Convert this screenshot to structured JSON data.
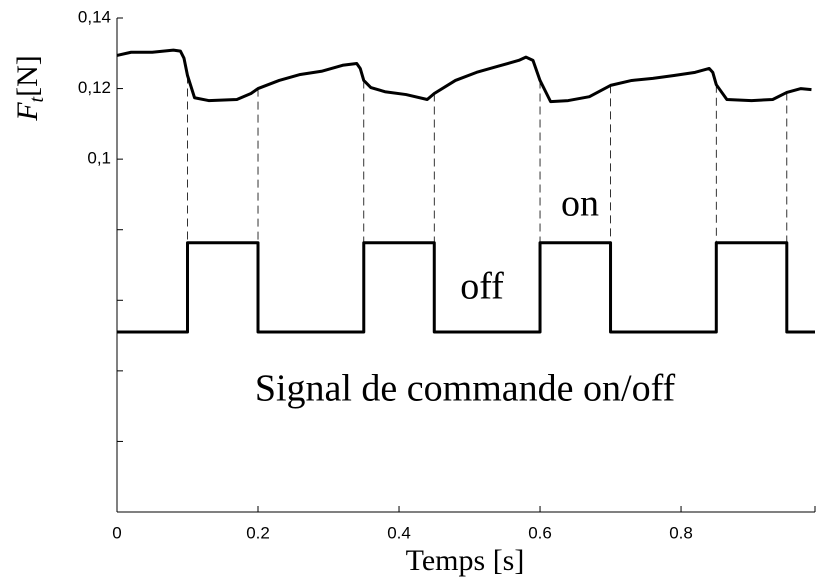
{
  "chart_data": {
    "type": "line",
    "ylabel": "F",
    "ylabel_sub": "t",
    "ylabel_unit": "[N]",
    "xlabel": "Temps [s]",
    "annotations": [
      "on",
      "off",
      "Signal de commande on/off"
    ],
    "xlim": [
      0,
      0.99
    ],
    "ylim": [
      0,
      0.14
    ],
    "xticks": [
      0,
      0.2,
      0.4,
      0.6,
      0.8
    ],
    "yticks": [
      {
        "value": 0.1,
        "label": "0,1"
      },
      {
        "value": 0.12,
        "label": "0,12"
      },
      {
        "value": 0.14,
        "label": "0,14"
      }
    ],
    "yticks_minor": [
      0.02,
      0.04,
      0.06,
      0.08
    ],
    "series": [
      {
        "color": "#000000",
        "x": [
          0,
          0.02,
          0.05,
          0.08,
          0.09,
          0.095,
          0.1,
          0.11,
          0.13,
          0.17,
          0.19,
          0.2,
          0.23,
          0.26,
          0.29,
          0.32,
          0.34,
          0.345,
          0.35,
          0.36,
          0.38,
          0.41,
          0.44,
          0.45,
          0.48,
          0.51,
          0.54,
          0.57,
          0.58,
          0.59,
          0.6,
          0.615,
          0.64,
          0.67,
          0.7,
          0.73,
          0.76,
          0.79,
          0.82,
          0.84,
          0.845,
          0.85,
          0.865,
          0.9,
          0.93,
          0.95,
          0.97,
          0.985
        ],
        "values": [
          0.1294,
          0.1303,
          0.1303,
          0.1309,
          0.1306,
          0.1286,
          0.1237,
          0.1174,
          0.1166,
          0.1169,
          0.1186,
          0.12,
          0.1223,
          0.124,
          0.1249,
          0.1266,
          0.1271,
          0.1257,
          0.1223,
          0.1203,
          0.1191,
          0.1183,
          0.1169,
          0.1186,
          0.1223,
          0.1246,
          0.1263,
          0.128,
          0.1289,
          0.128,
          0.1223,
          0.1163,
          0.1166,
          0.1177,
          0.1209,
          0.1223,
          0.1229,
          0.1237,
          0.1246,
          0.1257,
          0.1246,
          0.1211,
          0.1169,
          0.1166,
          0.1169,
          0.1189,
          0.12,
          0.1197
        ]
      },
      {
        "color": "#000000",
        "x": [
          0,
          0.1,
          0.1,
          0.2,
          0.2,
          0.35,
          0.35,
          0.45,
          0.45,
          0.6,
          0.6,
          0.7,
          0.7,
          0.85,
          0.85,
          0.95,
          0.95,
          0.99
        ],
        "values": [
          0.051,
          0.051,
          0.0763,
          0.0763,
          0.051,
          0.051,
          0.0763,
          0.0763,
          0.051,
          0.051,
          0.0763,
          0.0763,
          0.051,
          0.051,
          0.0763,
          0.0763,
          0.051,
          0.051
        ]
      }
    ]
  }
}
